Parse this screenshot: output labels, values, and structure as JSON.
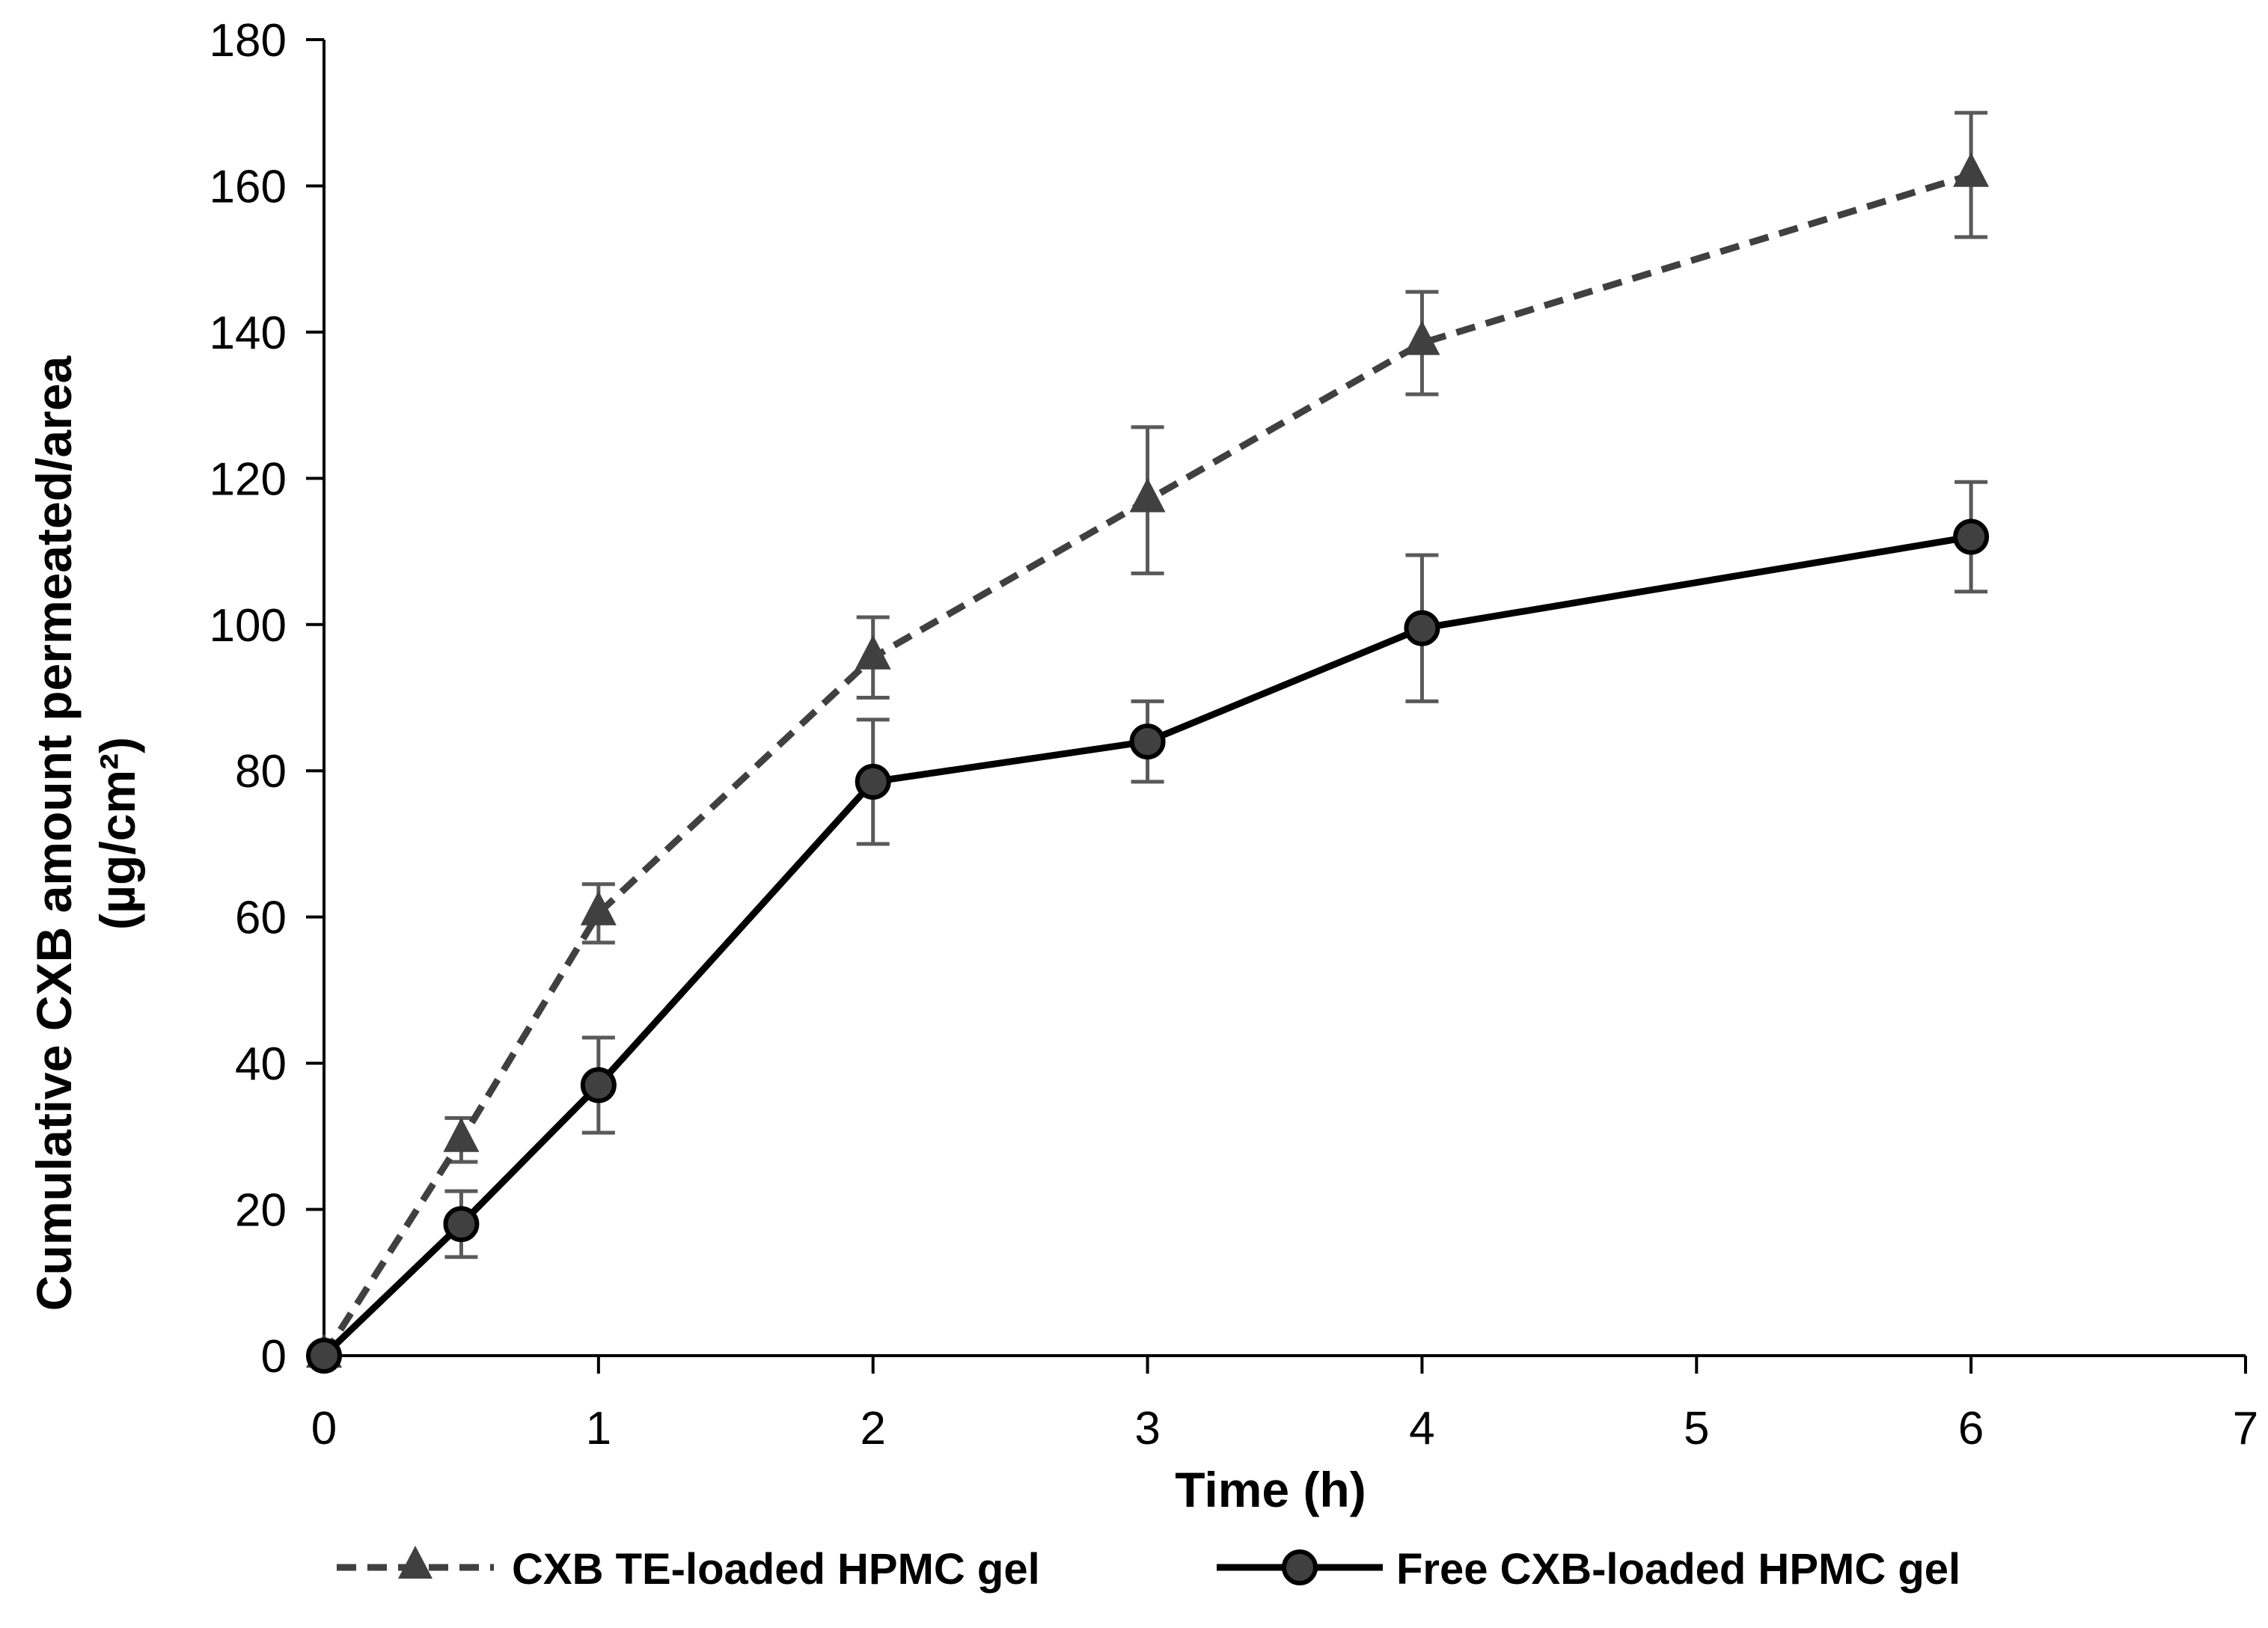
{
  "chart_data": {
    "type": "line",
    "title": "",
    "xlabel": "Time (h)",
    "ylabel_line1": "Cumulative CXB amount permeated/area",
    "ylabel_line2": "(µg/cm²)",
    "xlim": [
      0,
      7
    ],
    "ylim": [
      0,
      180
    ],
    "xticks": [
      0,
      1,
      2,
      3,
      4,
      5,
      6,
      7
    ],
    "yticks": [
      0,
      20,
      40,
      60,
      80,
      100,
      120,
      140,
      160,
      180
    ],
    "grid": false,
    "legend_position": "bottom",
    "series": [
      {
        "name": "CXB TE-loaded HPMC gel",
        "marker": "triangle",
        "line_style": "dashed",
        "color": "#404040",
        "x": [
          0,
          0.5,
          1,
          2,
          3,
          4,
          6
        ],
        "y": [
          0,
          29.5,
          60.5,
          95.5,
          117,
          138.5,
          161.5
        ],
        "error": [
          0,
          3,
          4,
          5.5,
          10,
          7,
          8.5
        ]
      },
      {
        "name": "Free CXB-loaded HPMC gel",
        "marker": "circle",
        "line_style": "solid",
        "color": "#000000",
        "marker_fill": "#404040",
        "x": [
          0,
          0.5,
          1,
          2,
          3,
          4,
          6
        ],
        "y": [
          0,
          18,
          37,
          78.5,
          84,
          99.5,
          112
        ],
        "error": [
          0,
          4.5,
          6.5,
          8.5,
          5.5,
          10,
          7.5
        ]
      }
    ],
    "errorbar_color": "#595959"
  }
}
